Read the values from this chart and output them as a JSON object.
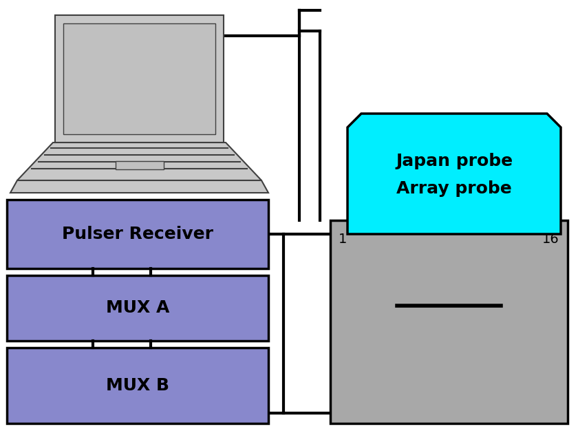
{
  "bg_color": "#ffffff",
  "box_purple": "#8888cc",
  "box_purple_edge": "#000000",
  "box_gray": "#a8a8a8",
  "box_cyan": "#00eeff",
  "laptop_gray_light": "#c8c8c8",
  "laptop_gray_dark": "#404040",
  "laptop_screen_bg": "#c0c0c0",
  "line_color": "#000000",
  "pulser_label": "Pulser Receiver",
  "muxa_label": "MUX A",
  "muxb_label": "MUX B",
  "probe_label1": "Japan probe",
  "probe_label2": "Array probe",
  "label1": "1",
  "label16": "16",
  "label_fontsize": 18,
  "small_fontsize": 14,
  "figsize": [
    8.4,
    6.26
  ],
  "dpi": 100
}
